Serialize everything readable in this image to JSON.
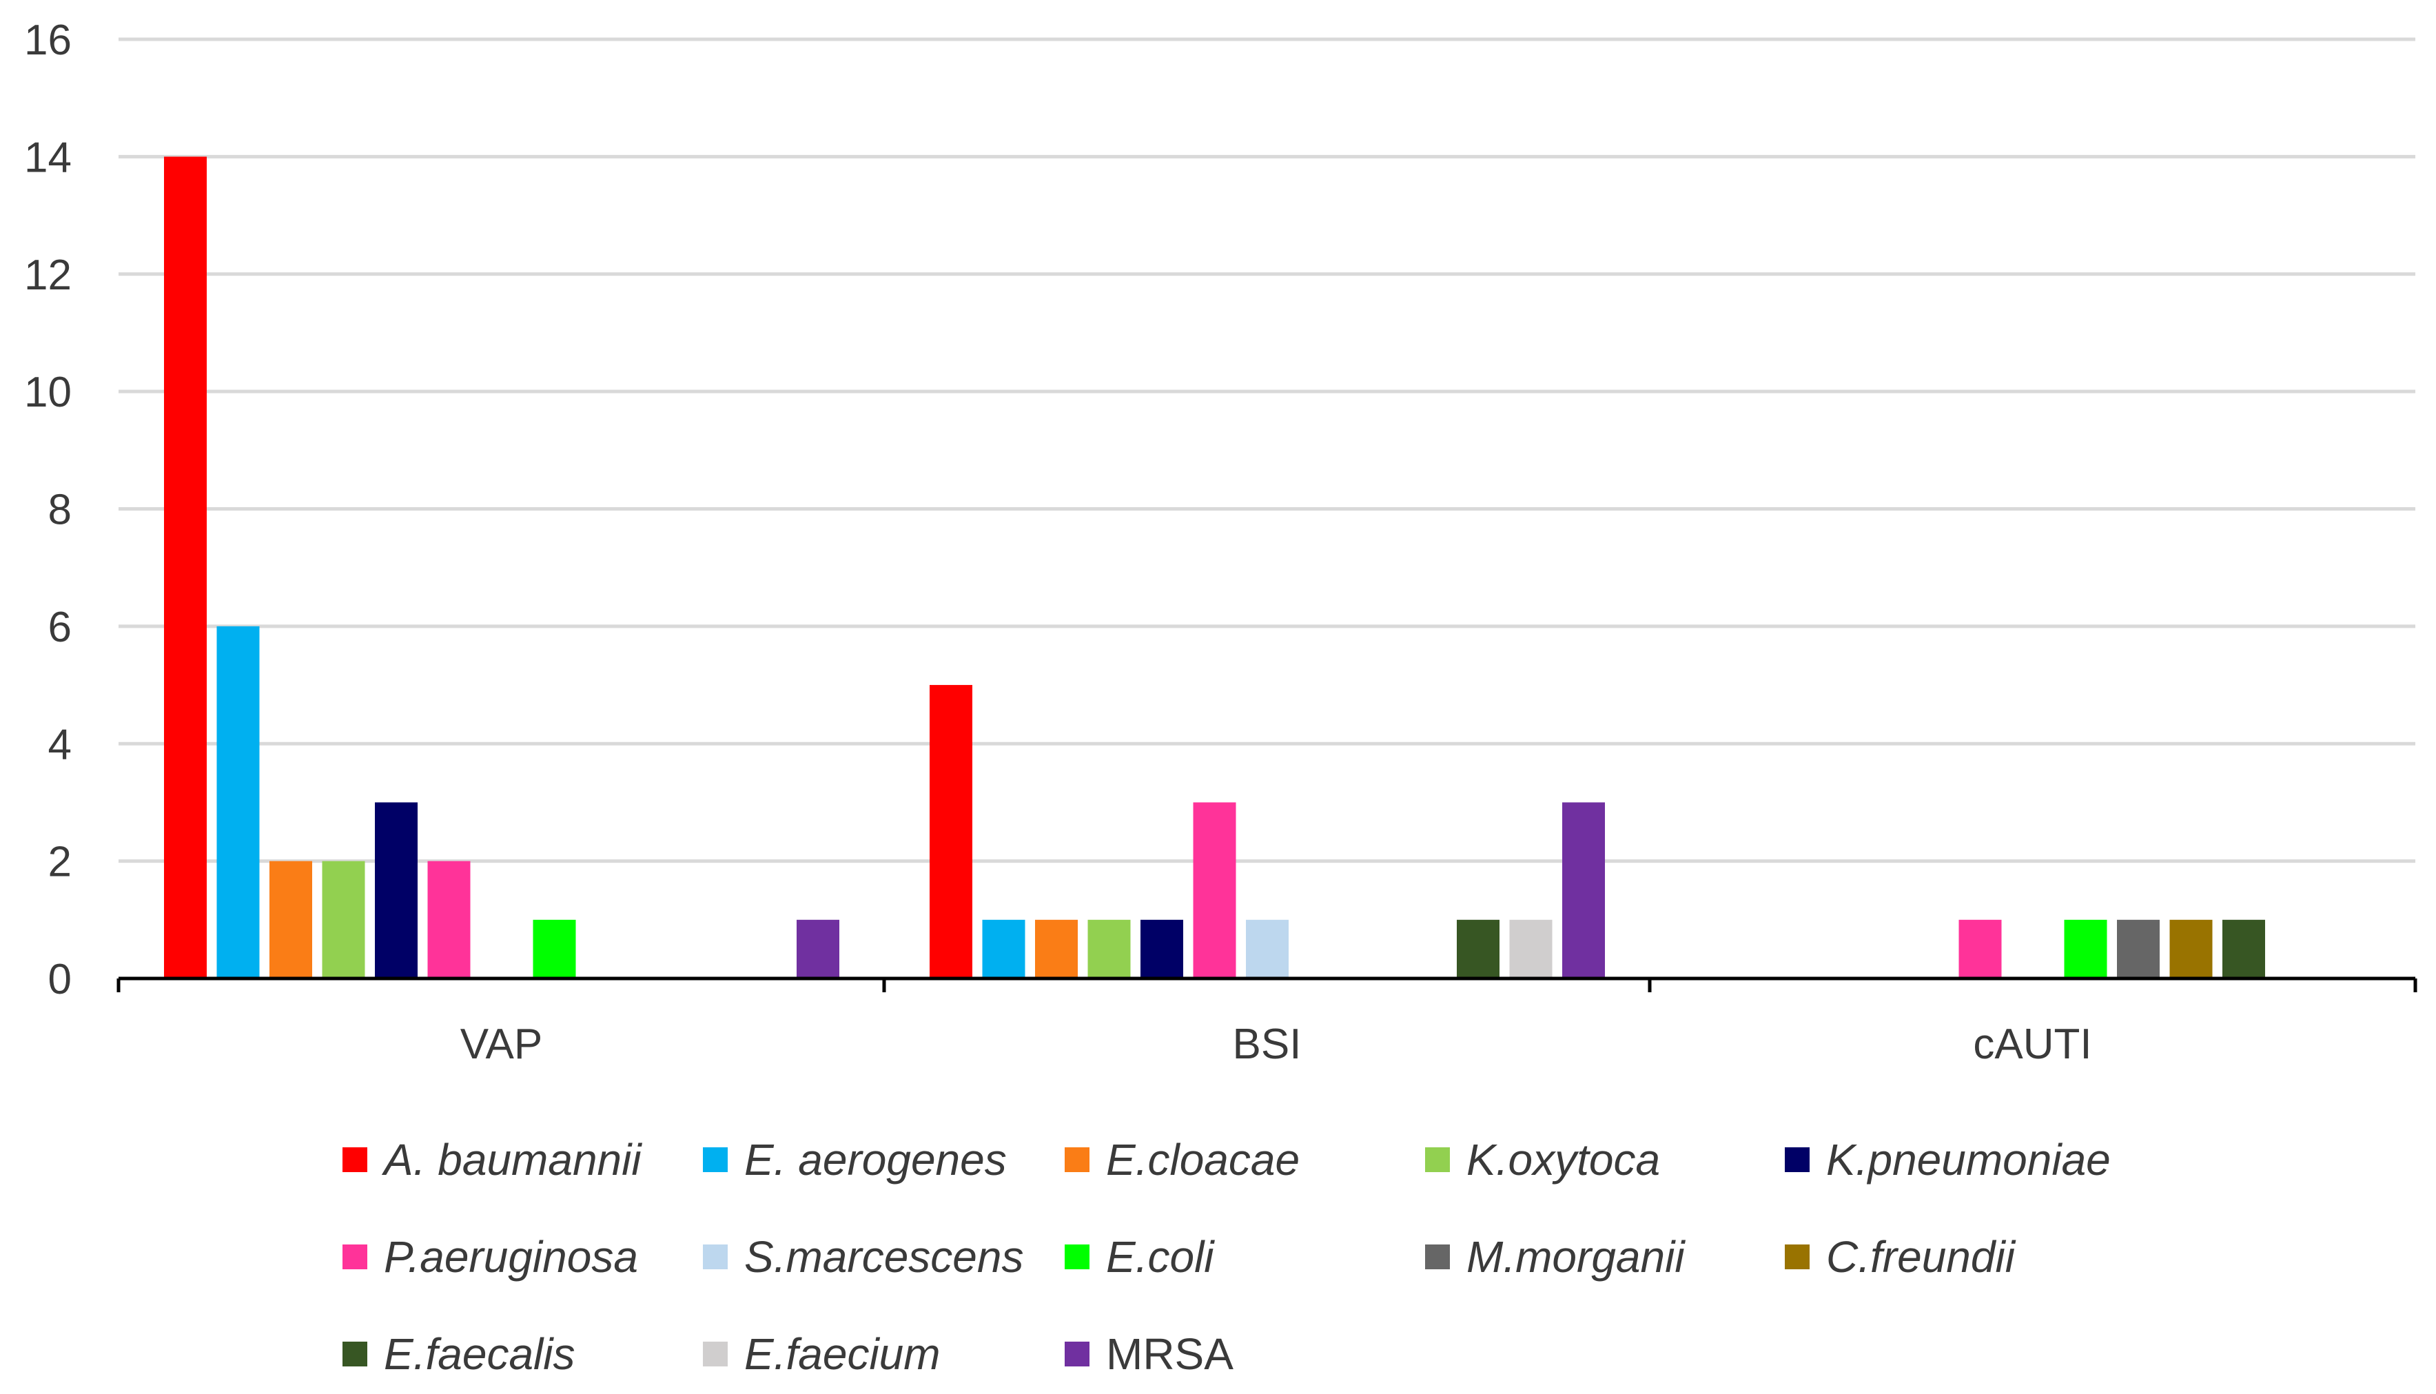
{
  "chart_data": {
    "type": "bar",
    "title": "",
    "xlabel": "",
    "ylabel": "",
    "ylim": [
      0,
      16
    ],
    "yticks": [
      0,
      2,
      4,
      6,
      8,
      10,
      12,
      14,
      16
    ],
    "grid": true,
    "legend_position": "bottom",
    "categories": [
      "VAP",
      "BSI",
      "cAUTI"
    ],
    "series": [
      {
        "name": "A. baumannii",
        "color": "#FF0000",
        "italic": true,
        "values": [
          14,
          5,
          0
        ]
      },
      {
        "name": "E. aerogenes",
        "color": "#00B0F0",
        "italic": true,
        "values": [
          6,
          1,
          0
        ]
      },
      {
        "name": "E.cloacae",
        "color": "#FA7D16",
        "italic": true,
        "values": [
          2,
          1,
          0
        ]
      },
      {
        "name": "K.oxytoca",
        "color": "#92D050",
        "italic": true,
        "values": [
          2,
          1,
          0
        ]
      },
      {
        "name": "K.pneumoniae",
        "color": "#000066",
        "italic": true,
        "values": [
          3,
          1,
          0
        ]
      },
      {
        "name": "P.aeruginosa",
        "color": "#FF3399",
        "italic": true,
        "values": [
          2,
          3,
          1
        ]
      },
      {
        "name": "S.marcescens",
        "color": "#BDD7EE",
        "italic": true,
        "values": [
          0,
          1,
          0
        ]
      },
      {
        "name": "E.coli",
        "color": "#00FF00",
        "italic": true,
        "values": [
          1,
          0,
          1
        ]
      },
      {
        "name": "M.morganii",
        "color": "#666666",
        "italic": true,
        "values": [
          0,
          0,
          1
        ]
      },
      {
        "name": "C.freundii",
        "color": "#997300",
        "italic": true,
        "values": [
          0,
          0,
          1
        ]
      },
      {
        "name": "E.faecalis",
        "color": "#375623",
        "italic": true,
        "values": [
          0,
          1,
          1
        ]
      },
      {
        "name": "E.faecium",
        "color": "#D0CECE",
        "italic": true,
        "values": [
          0,
          1,
          0
        ]
      },
      {
        "name": "MRSA",
        "color": "#7030A0",
        "italic": false,
        "values": [
          1,
          3,
          0
        ]
      }
    ]
  },
  "colors": {
    "gridline": "#D9D9D9",
    "axis": "#000000",
    "text": "#3a3a3a"
  }
}
